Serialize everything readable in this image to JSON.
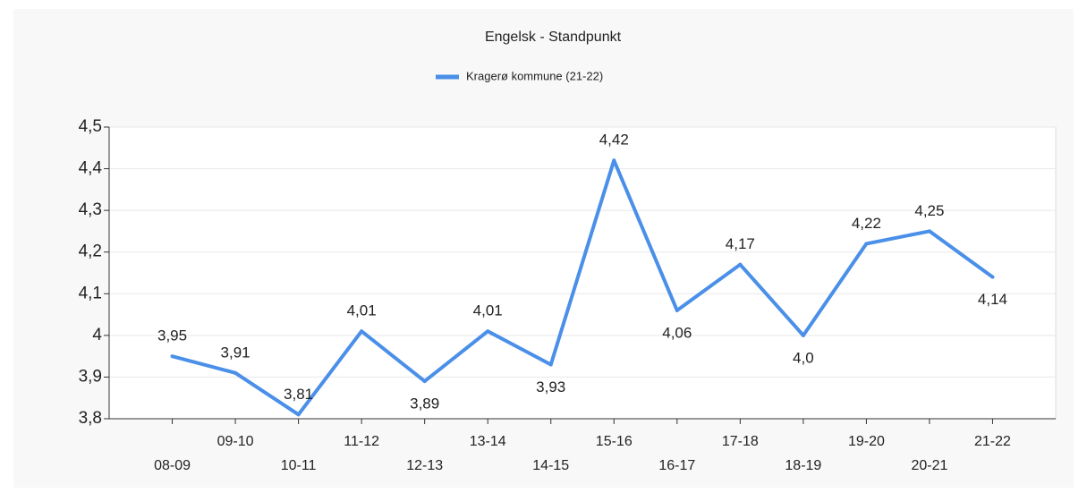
{
  "chart_data": {
    "type": "line",
    "title": "Engelsk - Standpunkt",
    "categories": [
      "08-09",
      "09-10",
      "10-11",
      "11-12",
      "12-13",
      "13-14",
      "14-15",
      "15-16",
      "16-17",
      "17-18",
      "18-19",
      "19-20",
      "20-21",
      "21-22"
    ],
    "series": [
      {
        "name": "Kragerø kommune (21-22)",
        "color": "#4a8fe8",
        "values": [
          3.95,
          3.91,
          3.81,
          4.01,
          3.89,
          4.01,
          3.93,
          4.42,
          4.06,
          4.17,
          4.0,
          4.22,
          4.25,
          4.14
        ],
        "value_labels": [
          "3,95",
          "3,91",
          "3,81",
          "4,01",
          "3,89",
          "4,01",
          "3,93",
          "4,42",
          "4,06",
          "4,17",
          "4,0",
          "4,22",
          "4,25",
          "4,14"
        ]
      }
    ],
    "ylim": [
      3.8,
      4.5
    ],
    "yticks": [
      {
        "value": 3.8,
        "label": "3,8"
      },
      {
        "value": 3.9,
        "label": "3,9"
      },
      4,
      {
        "value": 4.1,
        "label": "4,1"
      },
      {
        "value": 4.2,
        "label": "4,2"
      },
      {
        "value": 4.3,
        "label": "4,3"
      },
      {
        "value": 4.4,
        "label": "4,4"
      },
      {
        "value": 4.5,
        "label": "4,5"
      }
    ],
    "grid": true,
    "legend": "top"
  }
}
